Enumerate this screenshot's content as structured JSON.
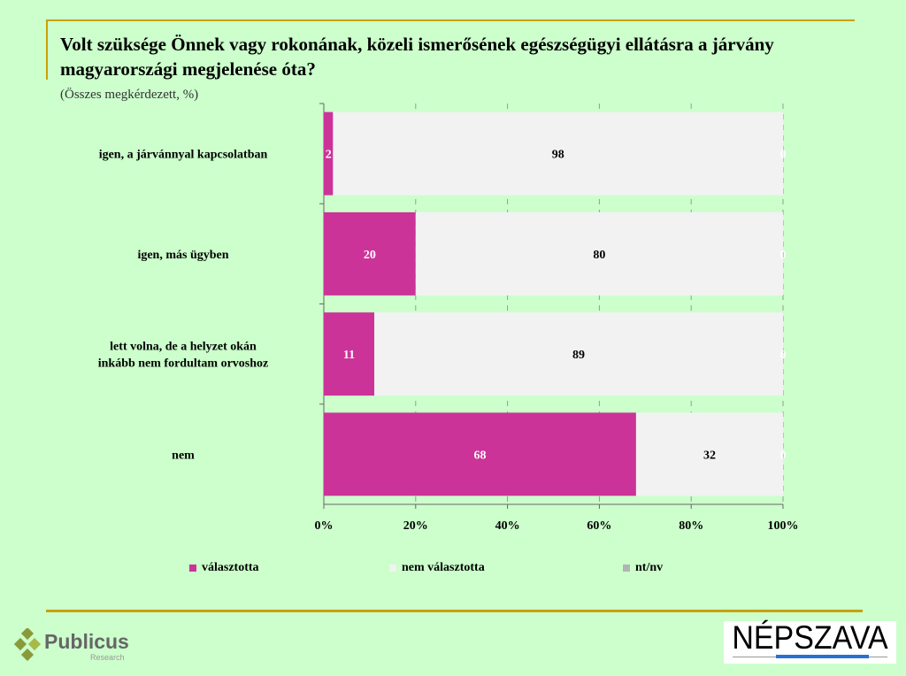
{
  "title": "Volt szüksége Önnek vagy rokonának, közeli ismerősének egészségügyi ellátásra a járvány magyarországi megjelenése óta?",
  "subtitle": "(Összes megkérdezett, %)",
  "chart_data": {
    "type": "bar",
    "orientation": "horizontal",
    "stacked": "percent",
    "categories": [
      "igen, a járvánnyal kapcsolatban",
      "igen, más ügyben",
      "lett volna, de a helyzet okán inkább nem fordultam orvoshoz",
      "nem"
    ],
    "series": [
      {
        "name": "választotta",
        "color": "#cc3399",
        "values": [
          2,
          20,
          11,
          68
        ]
      },
      {
        "name": "nem választotta",
        "color": "#f2f2f2",
        "values": [
          98,
          80,
          89,
          32
        ]
      },
      {
        "name": "nt/nv",
        "color": "#b3b3b3",
        "values": [
          0,
          0,
          0,
          0
        ]
      }
    ],
    "xticks": [
      "0%",
      "20%",
      "40%",
      "60%",
      "80%",
      "100%"
    ],
    "xlim": [
      0,
      100
    ],
    "grid": true,
    "legend": "bottom"
  },
  "logos": {
    "left": "Publicus",
    "left_sub": "Research",
    "right": "NÉPSZAVA"
  }
}
